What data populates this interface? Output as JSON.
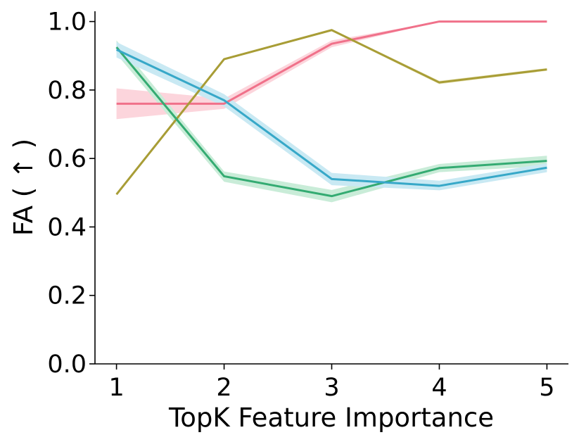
{
  "chart_data": {
    "type": "line",
    "title": "",
    "xlabel": "TopK Feature Importance",
    "ylabel": "FA ( ↑ )",
    "x": [
      1,
      2,
      3,
      4,
      5
    ],
    "xticks": [
      "1",
      "2",
      "3",
      "4",
      "5"
    ],
    "yticks": [
      "0.0",
      "0.2",
      "0.4",
      "0.6",
      "0.8",
      "1.0"
    ],
    "xlim": [
      0.8,
      5.2
    ],
    "ylim": [
      0.0,
      1.03
    ],
    "grid": false,
    "legend": "none",
    "series": [
      {
        "color": "#f0718a",
        "band_color": "#fcd5dc",
        "values": [
          0.76,
          0.76,
          0.935,
          1.0,
          1.0
        ],
        "lower": [
          0.715,
          0.745,
          0.925,
          1.0,
          1.0
        ],
        "upper": [
          0.805,
          0.775,
          0.945,
          1.0,
          1.0
        ]
      },
      {
        "color": "#a89d36",
        "band_color": "#ebe8c2",
        "values": [
          0.495,
          0.89,
          0.975,
          0.822,
          0.86
        ],
        "lower": [
          0.493,
          0.887,
          0.972,
          0.817,
          0.856
        ],
        "upper": [
          0.497,
          0.893,
          0.978,
          0.827,
          0.864
        ]
      },
      {
        "color": "#34ab72",
        "band_color": "#c9ecd8",
        "values": [
          0.925,
          0.548,
          0.49,
          0.572,
          0.593
        ],
        "lower": [
          0.905,
          0.532,
          0.472,
          0.56,
          0.578
        ],
        "upper": [
          0.945,
          0.562,
          0.508,
          0.584,
          0.608
        ]
      },
      {
        "color": "#37a8c8",
        "band_color": "#c9e9f3",
        "values": [
          0.918,
          0.77,
          0.54,
          0.52,
          0.573
        ],
        "lower": [
          0.895,
          0.752,
          0.522,
          0.507,
          0.56
        ],
        "upper": [
          0.94,
          0.788,
          0.558,
          0.535,
          0.586
        ]
      }
    ]
  }
}
